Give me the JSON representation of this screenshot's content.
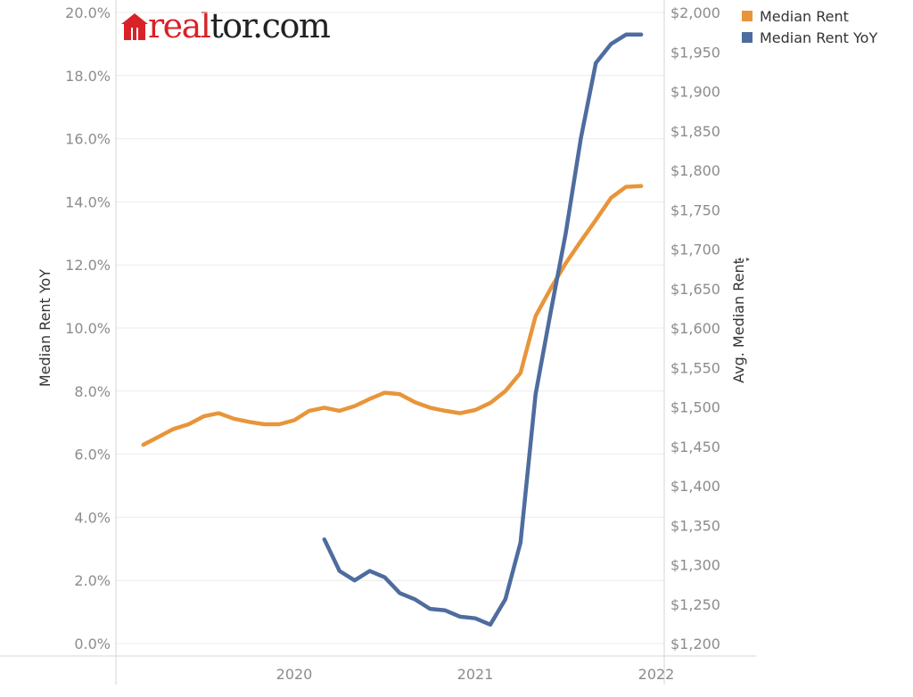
{
  "logo": {
    "part1": "real",
    "part2": "tor.com",
    "mark": "house-icon"
  },
  "legend": [
    {
      "label": "Median Rent",
      "color": "#e8953a"
    },
    {
      "label": "Median Rent YoY",
      "color": "#4e6c9e"
    }
  ],
  "chart_data": {
    "type": "line",
    "title": "",
    "xlabel": "",
    "ylabel": "Median Rent YoY",
    "y2label": "Avg. Median Rent",
    "x_ticks": [
      "2020",
      "2021",
      "2022"
    ],
    "y_left": {
      "ticks": [
        "0.0%",
        "2.0%",
        "4.0%",
        "6.0%",
        "8.0%",
        "10.0%",
        "12.0%",
        "14.0%",
        "16.0%",
        "18.0%",
        "20.0%"
      ],
      "range": [
        0,
        20
      ],
      "unit": "%"
    },
    "y_right": {
      "ticks": [
        "$1,200",
        "$1,250",
        "$1,300",
        "$1,350",
        "$1,400",
        "$1,450",
        "$1,500",
        "$1,550",
        "$1,600",
        "$1,650",
        "$1,700",
        "$1,750",
        "$1,800",
        "$1,850",
        "$1,900",
        "$1,950",
        "$2,000"
      ],
      "range": [
        1200,
        2000
      ],
      "unit": "$"
    },
    "grid": "horizontal",
    "legend_position": "top-right",
    "x": [
      "2019-03",
      "2019-04",
      "2019-05",
      "2019-06",
      "2019-07",
      "2019-08",
      "2019-09",
      "2019-10",
      "2019-11",
      "2019-12",
      "2020-01",
      "2020-02",
      "2020-03",
      "2020-04",
      "2020-05",
      "2020-06",
      "2020-07",
      "2020-08",
      "2020-09",
      "2020-10",
      "2020-11",
      "2020-12",
      "2021-01",
      "2021-02",
      "2021-03",
      "2021-04",
      "2021-05",
      "2021-06",
      "2021-07",
      "2021-08",
      "2021-09",
      "2021-10",
      "2021-11",
      "2021-12"
    ],
    "series": [
      {
        "name": "Median Rent",
        "axis": "right",
        "color": "#e8953a",
        "values": [
          1452,
          1462,
          1472,
          1478,
          1488,
          1492,
          1485,
          1481,
          1478,
          1478,
          1483,
          1495,
          1499,
          1495,
          1501,
          1510,
          1518,
          1516,
          1506,
          1499,
          1495,
          1492,
          1496,
          1505,
          1520,
          1543,
          1615,
          1650,
          1682,
          1710,
          1737,
          1765,
          1779,
          1780
        ]
      },
      {
        "name": "Median Rent YoY",
        "axis": "left",
        "color": "#4e6c9e",
        "values": [
          null,
          null,
          null,
          null,
          null,
          null,
          null,
          null,
          null,
          null,
          null,
          null,
          3.3,
          2.3,
          2.0,
          2.3,
          2.1,
          1.6,
          1.4,
          1.1,
          1.05,
          0.85,
          0.8,
          0.6,
          1.4,
          3.2,
          7.9,
          10.5,
          13.0,
          16.0,
          18.4,
          19.0,
          19.3,
          19.3
        ]
      }
    ]
  }
}
